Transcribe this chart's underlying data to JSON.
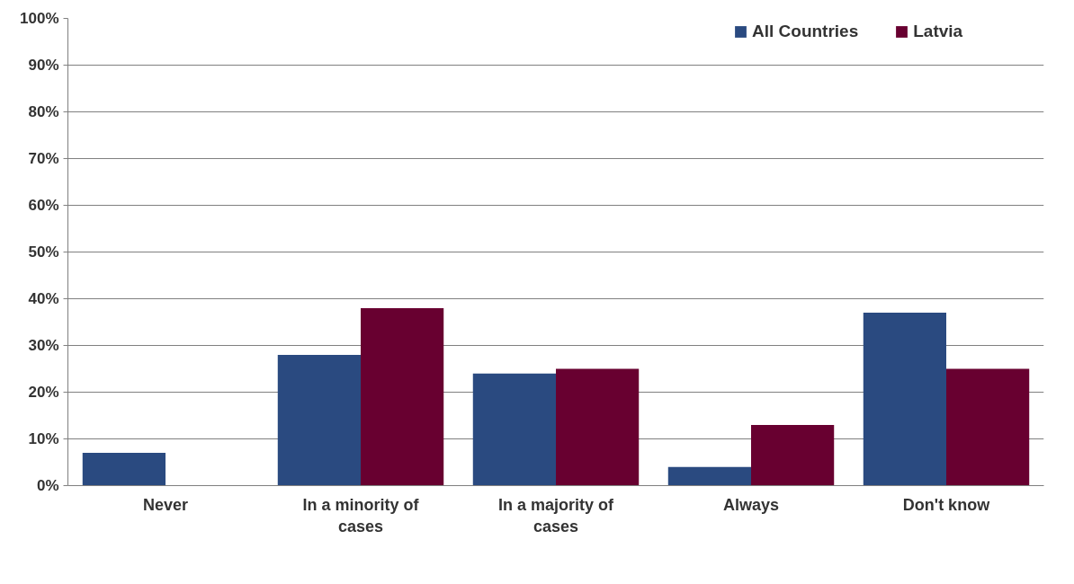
{
  "chart_data": {
    "type": "bar",
    "categories": [
      "Never",
      "In a minority of cases",
      "In a majority of cases",
      "Always",
      "Don't know"
    ],
    "series": [
      {
        "name": "All Countries",
        "color": "#2a4a80",
        "values": [
          7,
          28,
          24,
          4,
          37
        ]
      },
      {
        "name": "Latvia",
        "color": "#680030",
        "values": [
          0,
          38,
          25,
          13,
          25
        ]
      }
    ],
    "ylim": [
      0,
      100
    ],
    "yticks": [
      {
        "value": 0,
        "label": "0%"
      },
      {
        "value": 10,
        "label": "10%"
      },
      {
        "value": 20,
        "label": "20%"
      },
      {
        "value": 30,
        "label": "30%"
      },
      {
        "value": 40,
        "label": "40%"
      },
      {
        "value": 50,
        "label": "50%"
      },
      {
        "value": 60,
        "label": "60%"
      },
      {
        "value": 70,
        "label": "70%"
      },
      {
        "value": 80,
        "label": "80%"
      },
      {
        "value": 90,
        "label": "90%"
      },
      {
        "value": 100,
        "label": "100%"
      }
    ],
    "grid": "y",
    "legend": "top right"
  }
}
